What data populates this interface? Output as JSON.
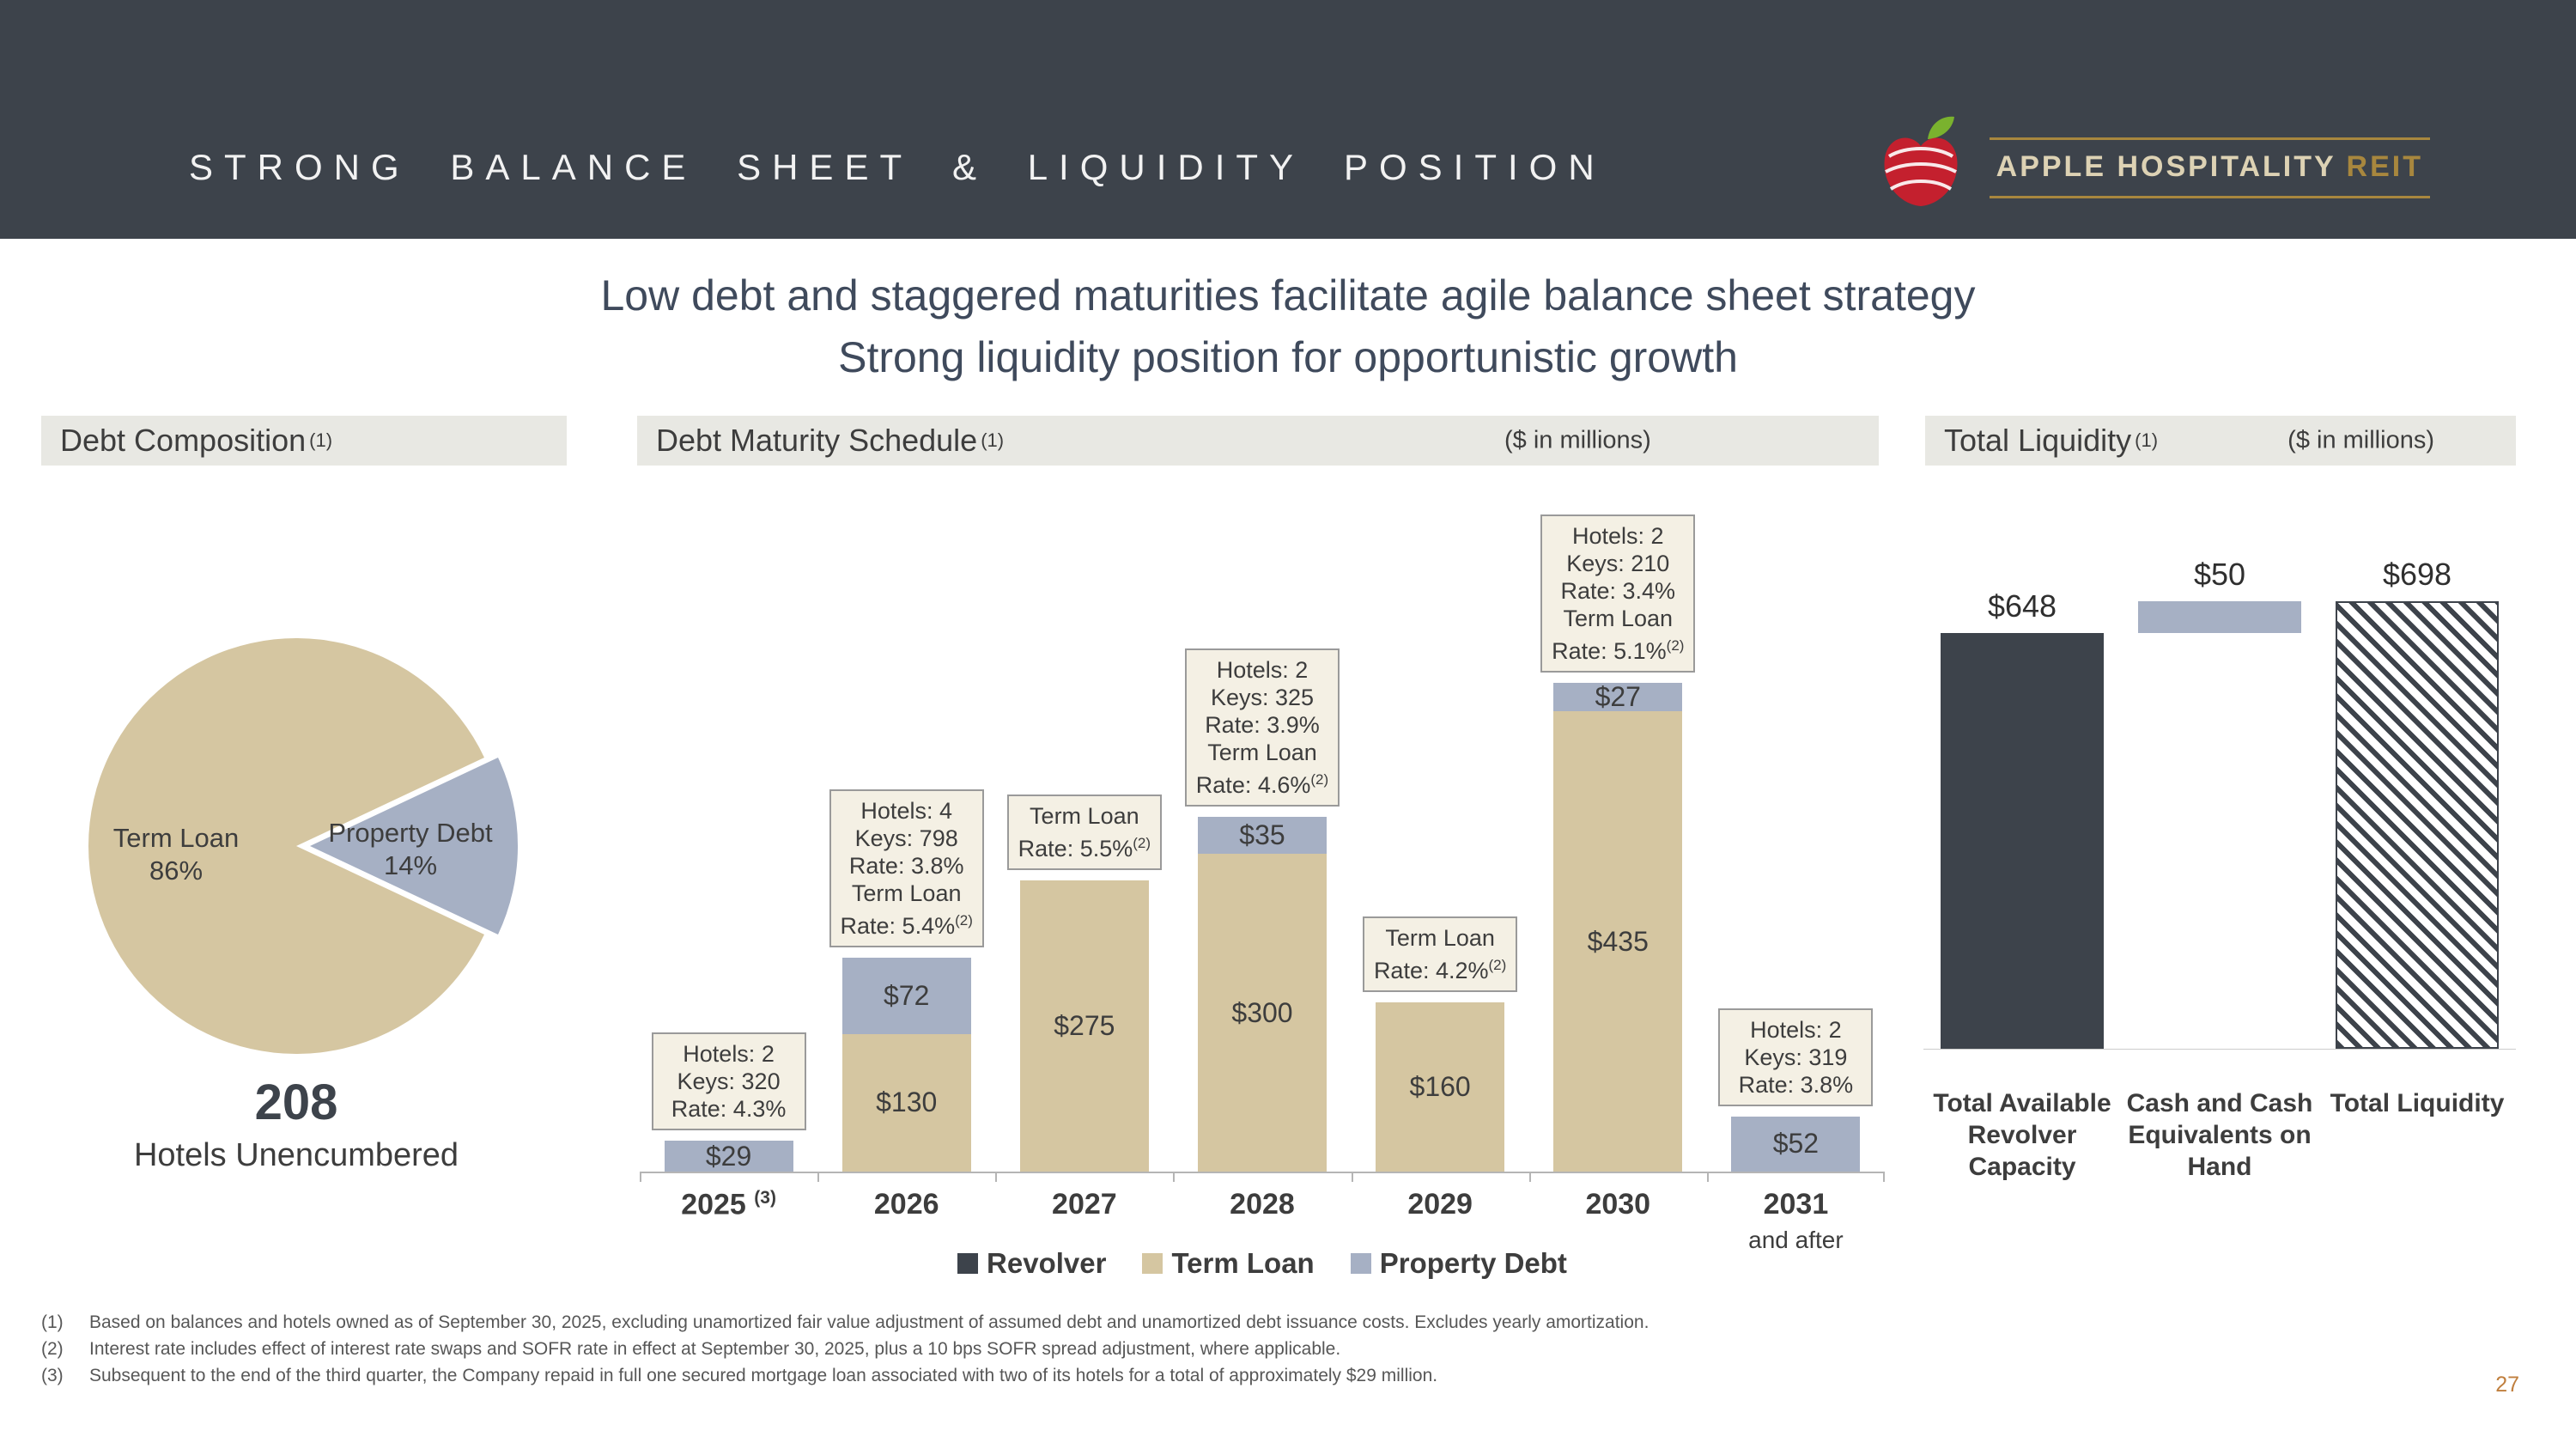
{
  "meta": {
    "page_number": "27"
  },
  "header": {
    "title": "STRONG BALANCE SHEET & LIQUIDITY POSITION",
    "logo": {
      "brand": "APPLE HOSPITALITY",
      "suffix": "REIT"
    }
  },
  "subtitle": {
    "line1": "Low debt and staggered maturities facilitate agile balance sheet strategy",
    "line2": "Strong liquidity position for opportunistic growth"
  },
  "sections": {
    "debt_composition": {
      "title": "Debt Composition",
      "superscript": "(1)"
    },
    "debt_maturity": {
      "title": "Debt Maturity Schedule",
      "superscript": "(1)",
      "units": "($ in millions)"
    },
    "total_liquidity": {
      "title": "Total Liquidity",
      "superscript": "(1)",
      "units": "($ in millions)"
    }
  },
  "colors": {
    "header_bg": "#3d434b",
    "section_bg": "#e8e8e3",
    "term_loan": "#d5c6a1",
    "property_debt": "#a6b0c4",
    "revolver": "#3d434b",
    "gold": "#a8873e",
    "brand_cream": "#ddd2b4",
    "annotation_bg": "#f4f0e4",
    "text_dark": "#3d3d3d",
    "subtitle_text": "#3f4a5c",
    "page_number": "#c07f3e",
    "apple_red": "#c4202e",
    "leaf_green": "#7ab22e",
    "series_colors": {
      "Revolver": "#3d434b",
      "Term Loan": "#d5c6a1",
      "Property Debt": "#a6b0c4"
    }
  },
  "chart_data": [
    {
      "name": "debt-composition-pie",
      "type": "pie",
      "title": "Debt Composition",
      "slices": [
        {
          "label": "Term Loan",
          "pct": 86
        },
        {
          "label": "Property Debt",
          "pct": 14
        }
      ],
      "callout_value": "208",
      "callout_label": "Hotels Unencumbered"
    },
    {
      "name": "debt-maturity-schedule",
      "type": "bar",
      "stacked": true,
      "title": "Debt Maturity Schedule",
      "units": "$ in millions",
      "categories": [
        "2025",
        "2026",
        "2027",
        "2028",
        "2029",
        "2030",
        "2031"
      ],
      "category_superscripts": [
        "(3)",
        "",
        "",
        "",
        "",
        "",
        ""
      ],
      "category_subtext": [
        "",
        "",
        "",
        "",
        "",
        "",
        "and after"
      ],
      "series": [
        {
          "name": "Term Loan",
          "values": [
            0,
            130,
            275,
            300,
            160,
            435,
            0
          ]
        },
        {
          "name": "Property Debt",
          "values": [
            29,
            72,
            0,
            35,
            0,
            27,
            52
          ]
        }
      ],
      "annotations": [
        {
          "year": "2025",
          "lines": [
            "Hotels: 2",
            "Keys: 320",
            "Rate: 4.3%"
          ]
        },
        {
          "year": "2026",
          "lines": [
            "Hotels: 4",
            "Keys: 798",
            "Rate: 3.8%",
            "Term Loan",
            "Rate: 5.4%(2)"
          ]
        },
        {
          "year": "2027",
          "lines": [
            "Term Loan",
            "Rate: 5.5%(2)"
          ]
        },
        {
          "year": "2028",
          "lines": [
            "Hotels: 2",
            "Keys: 325",
            "Rate: 3.9%",
            "Term Loan",
            "Rate: 4.6%(2)"
          ]
        },
        {
          "year": "2029",
          "lines": [
            "Term Loan",
            "Rate: 4.2%(2)"
          ]
        },
        {
          "year": "2030",
          "lines": [
            "Hotels: 2",
            "Keys: 210",
            "Rate: 3.4%",
            "Term Loan",
            "Rate: 5.1%(2)"
          ]
        },
        {
          "year": "2031",
          "lines": [
            "Hotels: 2",
            "Keys: 319",
            "Rate: 3.8%"
          ]
        }
      ],
      "legend": [
        "Revolver",
        "Term Loan",
        "Property Debt"
      ],
      "ylim": [
        0,
        480
      ]
    },
    {
      "name": "total-liquidity",
      "type": "bar",
      "title": "Total Liquidity",
      "units": "$ in millions",
      "bars": [
        {
          "label": "Total Available Revolver Capacity",
          "value": 648,
          "base": 0,
          "style": "solid-dark"
        },
        {
          "label": "Cash and Cash Equivalents on Hand",
          "value": 50,
          "base": 648,
          "style": "solid-gray"
        },
        {
          "label": "Total Liquidity",
          "value": 698,
          "base": 0,
          "style": "hatched"
        }
      ],
      "ylim": [
        0,
        760
      ]
    }
  ],
  "footnotes": [
    {
      "marker": "(1)",
      "text": "Based on balances and hotels owned as of September 30, 2025, excluding unamortized fair value adjustment of assumed debt and unamortized debt issuance costs. Excludes yearly amortization."
    },
    {
      "marker": "(2)",
      "text": "Interest rate includes effect of interest rate swaps and SOFR rate in effect at September 30, 2025, plus a 10 bps SOFR spread adjustment, where applicable."
    },
    {
      "marker": "(3)",
      "text": "Subsequent to the end of the third quarter, the Company repaid in full one secured mortgage loan associated with two of its hotels for a total of approximately $29 million."
    }
  ]
}
